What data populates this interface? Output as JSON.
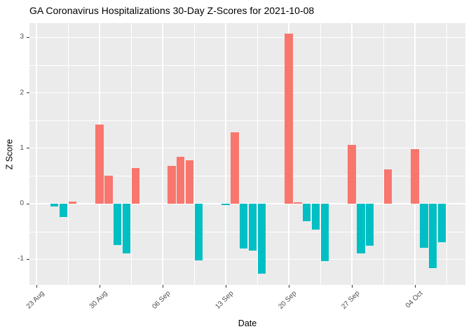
{
  "title": "GA Coronavirus Hospitalizations 30-Day Z-Scores for 2021-10-08",
  "chart_data": {
    "type": "bar",
    "title": "GA Coronavirus Hospitalizations 30-Day Z-Scores for 2021-10-08",
    "xlabel": "Date",
    "ylabel": "Z Score",
    "legend": "none",
    "grid": "on",
    "panel_bg": "#EBEBEB",
    "grid_color": "#FFFFFF",
    "tick_label_color": "#4D4D4D",
    "colors": {
      "positive": "#F8766D",
      "negative": "#00BFC4"
    },
    "points": [
      {
        "date": "2021-08-25",
        "value": -0.05
      },
      {
        "date": "2021-08-26",
        "value": -0.24
      },
      {
        "date": "2021-08-27",
        "value": 0.04
      },
      {
        "date": "2021-08-30",
        "value": 1.43
      },
      {
        "date": "2021-08-31",
        "value": 0.5
      },
      {
        "date": "2021-09-01",
        "value": -0.74
      },
      {
        "date": "2021-09-02",
        "value": -0.9
      },
      {
        "date": "2021-09-03",
        "value": 0.64
      },
      {
        "date": "2021-09-07",
        "value": 0.68
      },
      {
        "date": "2021-09-08",
        "value": 0.85
      },
      {
        "date": "2021-09-09",
        "value": 0.78
      },
      {
        "date": "2021-09-10",
        "value": -1.02
      },
      {
        "date": "2021-09-13",
        "value": -0.02
      },
      {
        "date": "2021-09-14",
        "value": 1.29
      },
      {
        "date": "2021-09-15",
        "value": -0.81
      },
      {
        "date": "2021-09-16",
        "value": -0.85
      },
      {
        "date": "2021-09-17",
        "value": -1.26
      },
      {
        "date": "2021-09-20",
        "value": 3.06
      },
      {
        "date": "2021-09-21",
        "value": 0.02
      },
      {
        "date": "2021-09-22",
        "value": -0.32
      },
      {
        "date": "2021-09-23",
        "value": -0.47
      },
      {
        "date": "2021-09-24",
        "value": -1.03
      },
      {
        "date": "2021-09-27",
        "value": 1.06
      },
      {
        "date": "2021-09-28",
        "value": -0.9
      },
      {
        "date": "2021-09-29",
        "value": -0.76
      },
      {
        "date": "2021-10-01",
        "value": 0.62
      },
      {
        "date": "2021-10-04",
        "value": 0.98
      },
      {
        "date": "2021-10-05",
        "value": -0.8
      },
      {
        "date": "2021-10-06",
        "value": -1.16
      },
      {
        "date": "2021-10-07",
        "value": -0.7
      }
    ],
    "x_ticks": [
      {
        "date": "2021-08-23",
        "label": "23 Aug"
      },
      {
        "date": "2021-08-30",
        "label": "30 Aug"
      },
      {
        "date": "2021-09-06",
        "label": "06 Sep"
      },
      {
        "date": "2021-09-13",
        "label": "13 Sep"
      },
      {
        "date": "2021-09-20",
        "label": "20 Sep"
      },
      {
        "date": "2021-09-27",
        "label": "27 Sep"
      },
      {
        "date": "2021-10-04",
        "label": "04 Oct"
      }
    ],
    "y_ticks": [
      3,
      2,
      1,
      0,
      -1
    ],
    "y_minor": [
      2.5,
      1.5,
      0.5,
      -0.5
    ],
    "ylim": [
      -1.46,
      3.26
    ],
    "xlim": [
      "2021-08-22",
      "2021-10-09"
    ],
    "bar_width_days": 0.9
  }
}
